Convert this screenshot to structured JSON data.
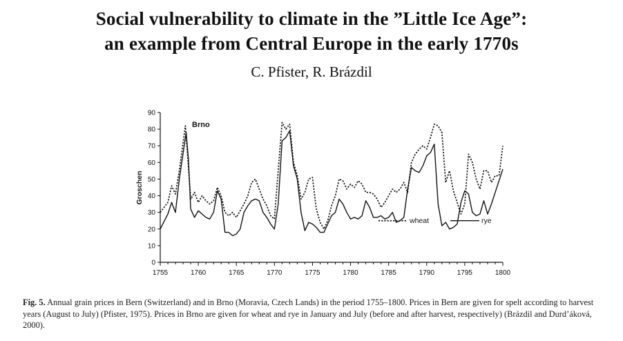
{
  "paper": {
    "title_line1": "Social vulnerability to climate in the ”Little Ice Age”:",
    "title_line2": "an example from Central Europe in the early 1770s",
    "authors": "C. Pfister, R. Brázdil"
  },
  "caption": {
    "label": "Fig. 5.",
    "text": "Annual grain prices in Bern (Switzerland) and in Brno (Moravia, Czech Lands) in the period 1755–1800. Prices in Bern are given for spelt according to harvest years (August to July) (Pfister, 1975). Prices in Brno are given for wheat and rye in January and July (before and after harvest, respectively) (Brázdil and Durd’áková, 2000)."
  },
  "chart_data": {
    "type": "line",
    "title": "Brno",
    "xlabel": "",
    "ylabel": "Groschen",
    "xlim": [
      1755,
      1800
    ],
    "ylim": [
      0,
      90
    ],
    "xticks": [
      1755,
      1760,
      1765,
      1770,
      1775,
      1780,
      1785,
      1790,
      1795,
      1800
    ],
    "yticks": [
      0,
      10,
      20,
      30,
      40,
      50,
      60,
      70,
      80,
      90
    ],
    "legend": {
      "position": "bottom-right"
    },
    "series": [
      {
        "name": "wheat",
        "style": "dotted",
        "x": [
          1755,
          1756,
          1756.5,
          1757,
          1757.5,
          1758.3,
          1758.5,
          1759,
          1759.5,
          1760,
          1760.5,
          1761,
          1761.5,
          1762,
          1762.5,
          1763,
          1763.5,
          1764,
          1764.5,
          1765,
          1765.5,
          1766,
          1766.5,
          1767,
          1767.5,
          1768,
          1768.5,
          1769,
          1769.5,
          1770,
          1770.5,
          1771,
          1771.5,
          1772,
          1772.5,
          1773,
          1773.5,
          1774,
          1774.5,
          1775,
          1775.5,
          1776,
          1776.5,
          1777,
          1777.5,
          1778,
          1778.5,
          1779,
          1779.5,
          1780,
          1780.5,
          1781,
          1781.5,
          1782,
          1782.5,
          1783,
          1783.5,
          1784,
          1784.5,
          1785,
          1785.5,
          1786,
          1786.5,
          1787,
          1787.5,
          1788,
          1788.5,
          1789,
          1789.5,
          1790,
          1790.5,
          1791,
          1791.5,
          1792,
          1792.5,
          1793,
          1793.5,
          1794,
          1794.5,
          1795,
          1795.5,
          1796,
          1796.5,
          1797,
          1797.5,
          1798,
          1798.5,
          1799,
          1799.5,
          1800
        ],
        "values": [
          30,
          36,
          46,
          41,
          55,
          82,
          70,
          38,
          42,
          36,
          40,
          37,
          35,
          37,
          45,
          40,
          30,
          28,
          30,
          27,
          31,
          35,
          40,
          48,
          50,
          44,
          38,
          34,
          28,
          26,
          55,
          84,
          80,
          83,
          60,
          52,
          38,
          42,
          50,
          51,
          32,
          24,
          20,
          25,
          34,
          40,
          50,
          49,
          44,
          47,
          45,
          49,
          47,
          42,
          42,
          41,
          38,
          33,
          36,
          40,
          44,
          42,
          44,
          48,
          42,
          60,
          65,
          68,
          70,
          68,
          75,
          83,
          82,
          78,
          48,
          55,
          43,
          36,
          29,
          35,
          65,
          60,
          50,
          44,
          55,
          55,
          48,
          52,
          52,
          70
        ]
      },
      {
        "name": "rye",
        "style": "solid",
        "x": [
          1755,
          1756,
          1756.5,
          1757,
          1757.5,
          1758.4,
          1758.7,
          1759,
          1759.5,
          1760,
          1760.5,
          1761,
          1761.5,
          1762,
          1762.5,
          1763,
          1763.5,
          1764,
          1764.5,
          1765,
          1765.5,
          1766,
          1766.5,
          1767,
          1767.5,
          1768,
          1768.5,
          1769,
          1769.5,
          1770,
          1770.5,
          1771,
          1771.5,
          1772,
          1772.5,
          1773,
          1773.5,
          1774,
          1774.5,
          1775,
          1775.5,
          1776,
          1776.5,
          1777,
          1777.5,
          1778,
          1778.5,
          1779,
          1779.5,
          1780,
          1780.5,
          1781,
          1781.5,
          1782,
          1782.5,
          1783,
          1783.5,
          1784,
          1784.5,
          1785,
          1785.5,
          1786,
          1786.5,
          1787,
          1787.5,
          1788,
          1788.5,
          1789,
          1789.5,
          1790,
          1790.5,
          1791,
          1791.5,
          1792,
          1792.5,
          1793,
          1793.5,
          1794,
          1794.5,
          1795,
          1795.5,
          1796,
          1796.5,
          1797,
          1797.5,
          1798,
          1798.5,
          1799,
          1799.5,
          1800
        ],
        "values": [
          20,
          29,
          36,
          30,
          50,
          78,
          62,
          32,
          27,
          31,
          29,
          27,
          26,
          30,
          43,
          38,
          18,
          18,
          16,
          17,
          20,
          30,
          34,
          37,
          38,
          37,
          30,
          27,
          23,
          20,
          35,
          73,
          75,
          79,
          58,
          50,
          30,
          19,
          24,
          23,
          21,
          18,
          18,
          23,
          28,
          30,
          38,
          35,
          30,
          26,
          27,
          26,
          28,
          37,
          33,
          27,
          27,
          28,
          26,
          27,
          30,
          24,
          25,
          27,
          44,
          57,
          55,
          54,
          58,
          64,
          66,
          71,
          35,
          22,
          24,
          20,
          21,
          23,
          36,
          43,
          41,
          30,
          28,
          29,
          37,
          29,
          35,
          42,
          49,
          56
        ]
      }
    ]
  }
}
